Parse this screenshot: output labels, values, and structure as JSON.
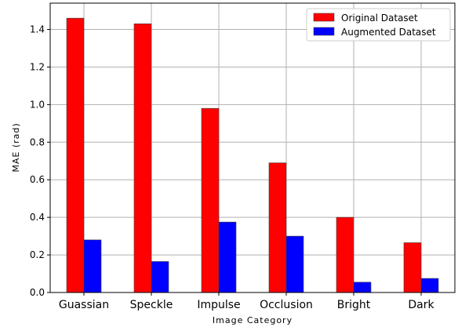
{
  "chart_data": {
    "type": "bar",
    "title": "",
    "xlabel": "Image Category",
    "ylabel": "MAE (rad)",
    "categories": [
      "Guassian",
      "Speckle",
      "Impulse",
      "Occlusion",
      "Bright",
      "Dark"
    ],
    "series": [
      {
        "name": "Original Dataset",
        "color": "#ff0000",
        "values": [
          1.46,
          1.43,
          0.98,
          0.69,
          0.4,
          0.265
        ]
      },
      {
        "name": "Augmented Dataset",
        "color": "#0000ff",
        "values": [
          0.28,
          0.165,
          0.375,
          0.3,
          0.055,
          0.075
        ]
      }
    ],
    "ylim": [
      0,
      1.54
    ],
    "yticks": [
      "0.0",
      "0.2",
      "0.4",
      "0.6",
      "0.8",
      "1.0",
      "1.2",
      "1.4"
    ],
    "grid": true,
    "legend_position": "top-right"
  }
}
